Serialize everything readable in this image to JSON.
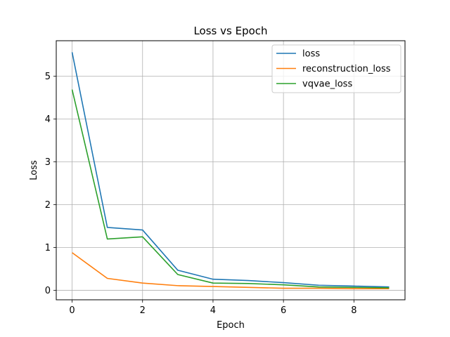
{
  "chart_data": {
    "type": "line",
    "title": "Loss vs Epoch",
    "xlabel": "Epoch",
    "ylabel": "Loss",
    "x": [
      0,
      1,
      2,
      3,
      4,
      5,
      6,
      7,
      8,
      9
    ],
    "xlim": [
      -0.45,
      9.45
    ],
    "ylim": [
      -0.22,
      5.83
    ],
    "xticks": [
      0,
      2,
      4,
      6,
      8
    ],
    "yticks": [
      0,
      1,
      2,
      3,
      4,
      5
    ],
    "grid": true,
    "legend_position": "top-right",
    "series": [
      {
        "name": "loss",
        "color": "#1f77b4",
        "values": [
          5.56,
          1.47,
          1.41,
          0.47,
          0.26,
          0.23,
          0.18,
          0.12,
          0.1,
          0.08
        ]
      },
      {
        "name": "reconstruction_loss",
        "color": "#ff7f0e",
        "values": [
          0.88,
          0.28,
          0.17,
          0.11,
          0.09,
          0.07,
          0.05,
          0.05,
          0.04,
          0.04
        ]
      },
      {
        "name": "vqvae_loss",
        "color": "#2ca02c",
        "values": [
          4.69,
          1.2,
          1.25,
          0.37,
          0.17,
          0.16,
          0.13,
          0.08,
          0.07,
          0.06
        ]
      }
    ]
  }
}
